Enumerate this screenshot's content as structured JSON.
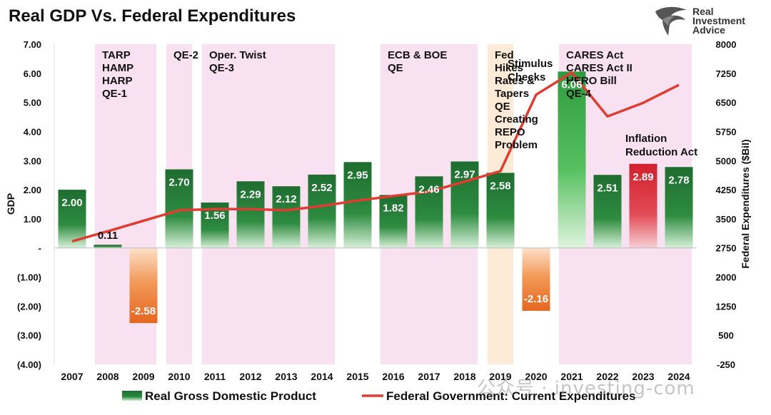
{
  "chart_data": {
    "type": "bar",
    "title": "Real GDP Vs. Federal Expenditures",
    "ylabel": "GDP",
    "ylabel_right": "Federal Expenditures ($Bil)",
    "categories": [
      "2007",
      "2008",
      "2009",
      "2010",
      "2011",
      "2012",
      "2013",
      "2014",
      "2015",
      "2016",
      "2017",
      "2018",
      "2019",
      "2020",
      "2021",
      "2022",
      "2023",
      "2024"
    ],
    "ylim": [
      -4,
      7
    ],
    "ylim_right": [
      -250,
      8000
    ],
    "y_ticks": [
      "7.00",
      "6.00",
      "5.00",
      "4.00",
      "3.00",
      "2.00",
      "1.00",
      "-",
      "(1.00)",
      "(2.00)",
      "(3.00)",
      "(4.00)"
    ],
    "y_ticks_right": [
      "8000",
      "7250",
      "6500",
      "5750",
      "5000",
      "4250",
      "3500",
      "2750",
      "2000",
      "1250",
      "500",
      "-250"
    ],
    "grid": false,
    "legend_position": "bottom",
    "series": [
      {
        "name": "Real Gross Domestic Product",
        "type": "bar",
        "axis": "left",
        "values": [
          2.0,
          0.11,
          -2.58,
          2.7,
          1.56,
          2.29,
          2.12,
          2.52,
          2.95,
          1.82,
          2.46,
          2.97,
          2.58,
          -2.16,
          6.06,
          2.51,
          2.89,
          2.78
        ],
        "labels": [
          "2.00",
          "0.11",
          "-2.58",
          "2.70",
          "1.56",
          "2.29",
          "2.12",
          "2.52",
          "2.95",
          "1.82",
          "2.46",
          "2.97",
          "2.58",
          "-2.16",
          "6.06",
          "2.51",
          "2.89",
          "2.78"
        ]
      },
      {
        "name": "Federal Government: Current Expenditures",
        "type": "line",
        "axis": "right",
        "color": "#e03c31",
        "values": [
          2920,
          3180,
          3450,
          3720,
          3750,
          3750,
          3720,
          3830,
          3970,
          4090,
          4200,
          4460,
          4730,
          6700,
          7270,
          6140,
          6490,
          6950
        ]
      }
    ],
    "shaded_periods": [
      {
        "from": "2008",
        "to": "2009",
        "color": "#f8e1f1",
        "label_lines": [
          "TARP",
          "HAMP",
          "HARP",
          "QE-1"
        ]
      },
      {
        "from": "2010",
        "to": "2010",
        "color": "#f8e1f1",
        "label_lines": [
          "QE-2"
        ]
      },
      {
        "from": "2011",
        "to": "2014",
        "color": "#f8e1f1",
        "label_lines": [
          "Oper. Twist",
          "QE-3"
        ]
      },
      {
        "from": "2016",
        "to": "2018",
        "color": "#f8e1f1",
        "label_lines": [
          "ECB & BOE",
          "QE"
        ]
      },
      {
        "from": "2019",
        "to": "2019",
        "color": "#fdebd8",
        "label_lines": [
          "Fed",
          "Hikes",
          "Rates &",
          "Tapers",
          "QE",
          "Creating",
          "REPO",
          "Problem"
        ]
      },
      {
        "from": "2021",
        "to": "2024",
        "color": "#f8e1f1",
        "label_lines": [
          "CARES Act",
          "CARES Act II",
          "HERO Bill",
          "QE-4"
        ]
      }
    ],
    "annotations": [
      {
        "at": "2020",
        "label_lines": [
          "Stimulus",
          "Checks"
        ]
      },
      {
        "at": "2023",
        "label_lines": [
          "Inflation",
          "Reduction Act"
        ]
      }
    ],
    "colors": {
      "bar_positive": "#1e7a35",
      "bar_negative": "#e8742a",
      "bar_highlight_2021": "#3fb24f",
      "bar_highlight_2023": "#d62831",
      "line": "#e03c31"
    }
  },
  "logo": {
    "text_lines": [
      "Real",
      "Investment",
      "Advice"
    ]
  },
  "watermark": "公众号 · investing-com"
}
